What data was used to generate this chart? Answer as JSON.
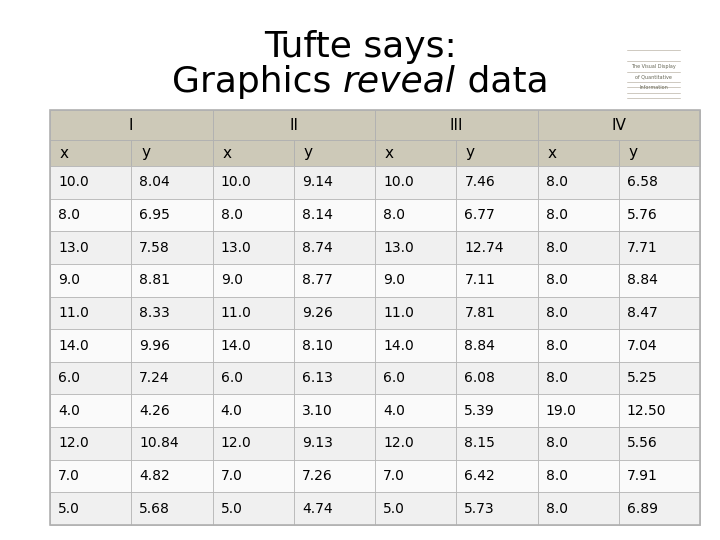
{
  "title_line1": "Tufte says:",
  "title_line2_pre": "Graphics ",
  "title_line2_italic": "reveal",
  "title_line2_post": " data",
  "title_fontsize": 26,
  "table_header": [
    "I",
    "II",
    "III",
    "IV"
  ],
  "col_labels": [
    "x",
    "y",
    "x",
    "y",
    "x",
    "y",
    "x",
    "y"
  ],
  "rows": [
    [
      "10.0",
      "8.04",
      "10.0",
      "9.14",
      "10.0",
      "7.46",
      "8.0",
      "6.58"
    ],
    [
      "8.0",
      "6.95",
      "8.0",
      "8.14",
      "8.0",
      "6.77",
      "8.0",
      "5.76"
    ],
    [
      "13.0",
      "7.58",
      "13.0",
      "8.74",
      "13.0",
      "12.74",
      "8.0",
      "7.71"
    ],
    [
      "9.0",
      "8.81",
      "9.0",
      "8.77",
      "9.0",
      "7.11",
      "8.0",
      "8.84"
    ],
    [
      "11.0",
      "8.33",
      "11.0",
      "9.26",
      "11.0",
      "7.81",
      "8.0",
      "8.47"
    ],
    [
      "14.0",
      "9.96",
      "14.0",
      "8.10",
      "14.0",
      "8.84",
      "8.0",
      "7.04"
    ],
    [
      "6.0",
      "7.24",
      "6.0",
      "6.13",
      "6.0",
      "6.08",
      "8.0",
      "5.25"
    ],
    [
      "4.0",
      "4.26",
      "4.0",
      "3.10",
      "4.0",
      "5.39",
      "19.0",
      "12.50"
    ],
    [
      "12.0",
      "10.84",
      "12.0",
      "9.13",
      "12.0",
      "8.15",
      "8.0",
      "5.56"
    ],
    [
      "7.0",
      "4.82",
      "7.0",
      "7.26",
      "7.0",
      "6.42",
      "8.0",
      "7.91"
    ],
    [
      "5.0",
      "5.68",
      "5.0",
      "4.74",
      "5.0",
      "5.73",
      "8.0",
      "6.89"
    ]
  ],
  "header_bg": "#cdc9b8",
  "row_bg_odd": "#f0f0f0",
  "row_bg_even": "#fafafa",
  "border_color": "#b0b0b0",
  "bg_color": "#ffffff",
  "text_color": "#000000",
  "header_fontsize": 11,
  "cell_fontsize": 10,
  "book_bg": "#e8dfc0",
  "book_text_color": "#666655"
}
